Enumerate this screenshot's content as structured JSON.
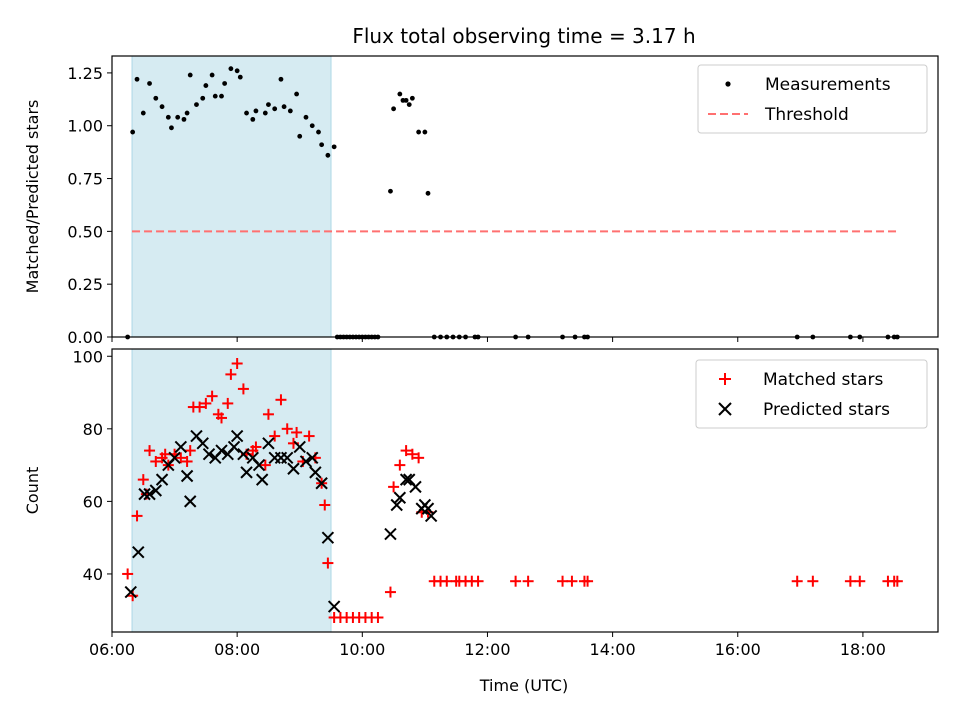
{
  "chart_data": [
    {
      "type": "scatter",
      "title": "Flux total observing time = 3.17 h",
      "ylabel": "Matched/Predicted stars",
      "xlabel": "",
      "xlim": [
        6.0,
        19.2
      ],
      "ylim": [
        0.0,
        1.33
      ],
      "xticks": [
        6,
        8,
        10,
        12,
        14,
        16,
        18
      ],
      "yticks": [
        0.0,
        0.25,
        0.5,
        0.75,
        1.0,
        1.25
      ],
      "ytick_labels": [
        "0.00",
        "0.25",
        "0.50",
        "0.75",
        "1.00",
        "1.25"
      ],
      "shaded_span": {
        "x0": 6.32,
        "x1": 9.5,
        "color": "#add8e6"
      },
      "legend": {
        "position": "top-right",
        "entries": [
          "Measurements",
          "Threshold"
        ]
      },
      "series": [
        {
          "name": "Measurements",
          "marker": "dot",
          "color": "#000000",
          "points": [
            [
              6.25,
              0.0
            ],
            [
              6.33,
              0.97
            ],
            [
              6.4,
              1.22
            ],
            [
              6.5,
              1.06
            ],
            [
              6.6,
              1.2
            ],
            [
              6.7,
              1.13
            ],
            [
              6.8,
              1.09
            ],
            [
              6.9,
              1.04
            ],
            [
              6.95,
              0.99
            ],
            [
              7.05,
              1.04
            ],
            [
              7.15,
              1.03
            ],
            [
              7.2,
              1.06
            ],
            [
              7.25,
              1.24
            ],
            [
              7.35,
              1.1
            ],
            [
              7.45,
              1.13
            ],
            [
              7.5,
              1.19
            ],
            [
              7.6,
              1.24
            ],
            [
              7.65,
              1.14
            ],
            [
              7.75,
              1.14
            ],
            [
              7.8,
              1.2
            ],
            [
              7.9,
              1.27
            ],
            [
              8.0,
              1.26
            ],
            [
              8.05,
              1.23
            ],
            [
              8.15,
              1.06
            ],
            [
              8.25,
              1.03
            ],
            [
              8.3,
              1.07
            ],
            [
              8.45,
              1.06
            ],
            [
              8.5,
              1.1
            ],
            [
              8.6,
              1.08
            ],
            [
              8.7,
              1.22
            ],
            [
              8.75,
              1.09
            ],
            [
              8.85,
              1.07
            ],
            [
              8.95,
              1.15
            ],
            [
              9.0,
              0.95
            ],
            [
              9.1,
              1.04
            ],
            [
              9.2,
              1.0
            ],
            [
              9.3,
              0.97
            ],
            [
              9.35,
              0.91
            ],
            [
              9.45,
              0.86
            ],
            [
              9.55,
              0.9
            ],
            [
              9.6,
              0.0
            ],
            [
              9.65,
              0.0
            ],
            [
              9.7,
              0.0
            ],
            [
              9.75,
              0.0
            ],
            [
              9.8,
              0.0
            ],
            [
              9.85,
              0.0
            ],
            [
              9.9,
              0.0
            ],
            [
              9.95,
              0.0
            ],
            [
              10.0,
              0.0
            ],
            [
              10.05,
              0.0
            ],
            [
              10.1,
              0.0
            ],
            [
              10.15,
              0.0
            ],
            [
              10.2,
              0.0
            ],
            [
              10.25,
              0.0
            ],
            [
              10.45,
              0.69
            ],
            [
              10.5,
              1.08
            ],
            [
              10.6,
              1.15
            ],
            [
              10.65,
              1.12
            ],
            [
              10.7,
              1.12
            ],
            [
              10.75,
              1.1
            ],
            [
              10.8,
              1.13
            ],
            [
              10.9,
              0.97
            ],
            [
              11.0,
              0.97
            ],
            [
              11.05,
              0.68
            ],
            [
              11.15,
              0.0
            ],
            [
              11.25,
              0.0
            ],
            [
              11.35,
              0.0
            ],
            [
              11.45,
              0.0
            ],
            [
              11.55,
              0.0
            ],
            [
              11.65,
              0.0
            ],
            [
              11.8,
              0.0
            ],
            [
              11.85,
              0.0
            ],
            [
              12.45,
              0.0
            ],
            [
              12.65,
              0.0
            ],
            [
              13.2,
              0.0
            ],
            [
              13.4,
              0.0
            ],
            [
              13.55,
              0.0
            ],
            [
              13.6,
              0.0
            ],
            [
              16.95,
              0.0
            ],
            [
              17.2,
              0.0
            ],
            [
              17.8,
              0.0
            ],
            [
              17.95,
              0.0
            ],
            [
              18.4,
              0.0
            ],
            [
              18.5,
              0.0
            ],
            [
              18.55,
              0.0
            ]
          ]
        },
        {
          "name": "Threshold",
          "line": "dashed",
          "color": "#ff7070",
          "points": [
            [
              6.32,
              0.5
            ],
            [
              18.55,
              0.5
            ]
          ]
        }
      ]
    },
    {
      "type": "scatter",
      "title": "",
      "ylabel": "Count",
      "xlabel": "Time (UTC)",
      "xlim": [
        6.0,
        19.2
      ],
      "ylim": [
        24,
        102
      ],
      "xticks": [
        6,
        8,
        10,
        12,
        14,
        16,
        18
      ],
      "xtick_labels": [
        "06:00",
        "08:00",
        "10:00",
        "12:00",
        "14:00",
        "16:00",
        "18:00"
      ],
      "yticks": [
        40,
        60,
        80,
        100
      ],
      "ytick_labels": [
        "40",
        "60",
        "80",
        "100"
      ],
      "shaded_span": {
        "x0": 6.32,
        "x1": 9.5,
        "color": "#add8e6"
      },
      "legend": {
        "position": "top-right",
        "entries": [
          "Matched stars",
          "Predicted stars"
        ]
      },
      "series": [
        {
          "name": "Matched stars",
          "marker": "plus",
          "color": "#ff0000",
          "points": [
            [
              6.25,
              40
            ],
            [
              6.33,
              34
            ],
            [
              6.4,
              56
            ],
            [
              6.5,
              66
            ],
            [
              6.55,
              62
            ],
            [
              6.6,
              74
            ],
            [
              6.7,
              71
            ],
            [
              6.8,
              72
            ],
            [
              6.85,
              73
            ],
            [
              6.9,
              70
            ],
            [
              7.0,
              73
            ],
            [
              7.1,
              72
            ],
            [
              7.2,
              71
            ],
            [
              7.25,
              74
            ],
            [
              7.3,
              86
            ],
            [
              7.4,
              86
            ],
            [
              7.5,
              87
            ],
            [
              7.6,
              89
            ],
            [
              7.7,
              84
            ],
            [
              7.75,
              83
            ],
            [
              7.85,
              87
            ],
            [
              7.9,
              95
            ],
            [
              8.0,
              98
            ],
            [
              8.1,
              91
            ],
            [
              8.15,
              73
            ],
            [
              8.25,
              74
            ],
            [
              8.3,
              75
            ],
            [
              8.45,
              70
            ],
            [
              8.5,
              84
            ],
            [
              8.6,
              78
            ],
            [
              8.7,
              88
            ],
            [
              8.8,
              80
            ],
            [
              8.9,
              76
            ],
            [
              8.95,
              79
            ],
            [
              9.05,
              71
            ],
            [
              9.15,
              78
            ],
            [
              9.25,
              72
            ],
            [
              9.35,
              65
            ],
            [
              9.4,
              59
            ],
            [
              9.45,
              43
            ],
            [
              9.55,
              28
            ],
            [
              9.65,
              28
            ],
            [
              9.75,
              28
            ],
            [
              9.85,
              28
            ],
            [
              9.95,
              28
            ],
            [
              10.05,
              28
            ],
            [
              10.15,
              28
            ],
            [
              10.25,
              28
            ],
            [
              10.45,
              35
            ],
            [
              10.5,
              64
            ],
            [
              10.6,
              70
            ],
            [
              10.7,
              74
            ],
            [
              10.8,
              73
            ],
            [
              10.9,
              72
            ],
            [
              10.95,
              57
            ],
            [
              11.05,
              57
            ],
            [
              11.15,
              38
            ],
            [
              11.25,
              38
            ],
            [
              11.35,
              38
            ],
            [
              11.5,
              38
            ],
            [
              11.55,
              38
            ],
            [
              11.65,
              38
            ],
            [
              11.75,
              38
            ],
            [
              11.85,
              38
            ],
            [
              12.45,
              38
            ],
            [
              12.65,
              38
            ],
            [
              13.2,
              38
            ],
            [
              13.35,
              38
            ],
            [
              13.55,
              38
            ],
            [
              13.6,
              38
            ],
            [
              16.95,
              38
            ],
            [
              17.2,
              38
            ],
            [
              17.8,
              38
            ],
            [
              17.95,
              38
            ],
            [
              18.4,
              38
            ],
            [
              18.5,
              38
            ],
            [
              18.55,
              38
            ]
          ]
        },
        {
          "name": "Predicted stars",
          "marker": "x",
          "color": "#000000",
          "points": [
            [
              6.3,
              35
            ],
            [
              6.42,
              46
            ],
            [
              6.52,
              62
            ],
            [
              6.6,
              62
            ],
            [
              6.7,
              63
            ],
            [
              6.8,
              66
            ],
            [
              6.9,
              70
            ],
            [
              7.0,
              72
            ],
            [
              7.1,
              75
            ],
            [
              7.2,
              67
            ],
            [
              7.25,
              60
            ],
            [
              7.35,
              78
            ],
            [
              7.45,
              76
            ],
            [
              7.55,
              73
            ],
            [
              7.65,
              72
            ],
            [
              7.75,
              74
            ],
            [
              7.85,
              73
            ],
            [
              7.95,
              75
            ],
            [
              8.0,
              78
            ],
            [
              8.1,
              73
            ],
            [
              8.15,
              68
            ],
            [
              8.25,
              72
            ],
            [
              8.35,
              70
            ],
            [
              8.4,
              66
            ],
            [
              8.5,
              76
            ],
            [
              8.6,
              72
            ],
            [
              8.7,
              72
            ],
            [
              8.8,
              72
            ],
            [
              8.9,
              69
            ],
            [
              9.0,
              75
            ],
            [
              9.1,
              71
            ],
            [
              9.2,
              72
            ],
            [
              9.25,
              68
            ],
            [
              9.35,
              65
            ],
            [
              9.45,
              50
            ],
            [
              9.55,
              31
            ],
            [
              10.45,
              51
            ],
            [
              10.55,
              59
            ],
            [
              10.6,
              61
            ],
            [
              10.7,
              66
            ],
            [
              10.75,
              66
            ],
            [
              10.85,
              64
            ],
            [
              10.95,
              58
            ],
            [
              11.0,
              59
            ],
            [
              11.05,
              58
            ],
            [
              11.1,
              56
            ]
          ]
        }
      ]
    }
  ]
}
